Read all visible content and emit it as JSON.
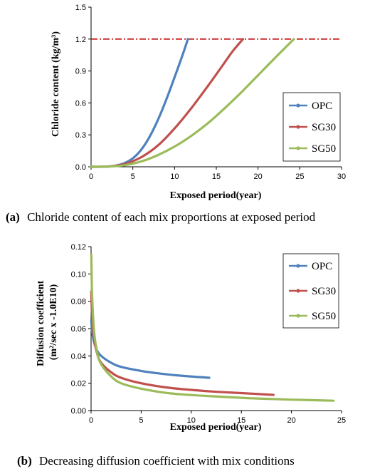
{
  "chart_data": [
    {
      "type": "line",
      "caption_label": "(a)",
      "caption_text": "Chloride content of each mix proportions at exposed period",
      "xlabel": "Exposed period(year)",
      "ylabel": "Chloride content (kg/m³)",
      "xlim": [
        0,
        30
      ],
      "ylim": [
        0,
        1.5
      ],
      "xticks": [
        "0",
        "5",
        "10",
        "15",
        "20",
        "25",
        "30"
      ],
      "yticks": [
        "0.0",
        "0.3",
        "0.6",
        "0.9",
        "1.2",
        "1.5"
      ],
      "grid": false,
      "legend_position": "bottom-right",
      "threshold": 1.2,
      "colors": {
        "threshold": "#c00000"
      },
      "series": [
        {
          "name": "OPC",
          "color": "#4f81bd",
          "x": [
            0,
            2,
            3,
            4,
            5,
            6,
            7,
            8,
            9,
            10,
            11,
            11.6
          ],
          "y": [
            0,
            0.003,
            0.012,
            0.035,
            0.08,
            0.16,
            0.28,
            0.44,
            0.63,
            0.84,
            1.06,
            1.2
          ]
        },
        {
          "name": "SG30",
          "color": "#c0504d",
          "x": [
            0,
            2,
            4,
            6,
            8,
            10,
            12,
            14,
            16,
            17,
            18.2
          ],
          "y": [
            0,
            0.002,
            0.025,
            0.09,
            0.2,
            0.36,
            0.55,
            0.76,
            0.98,
            1.09,
            1.2
          ]
        },
        {
          "name": "SG50",
          "color": "#9bbb59",
          "x": [
            0,
            2,
            4,
            6,
            8,
            10,
            12,
            14,
            16,
            18,
            20,
            22,
            24.3
          ],
          "y": [
            0,
            0.002,
            0.015,
            0.05,
            0.11,
            0.19,
            0.29,
            0.41,
            0.55,
            0.7,
            0.86,
            1.02,
            1.2
          ]
        }
      ]
    },
    {
      "type": "line",
      "caption_label": "(b)",
      "caption_text": "Decreasing diffusion coefficient with mix conditions",
      "xlabel": "Exposed period(year)",
      "ylabel": "Diffusion coefficient (m²/sec x -1.0E10)",
      "xlim": [
        0,
        25
      ],
      "ylim": [
        0,
        0.12
      ],
      "xticks": [
        "0",
        "5",
        "10",
        "15",
        "20",
        "25"
      ],
      "yticks": [
        "0.00",
        "0.02",
        "0.04",
        "0.06",
        "0.08",
        "0.10",
        "0.12"
      ],
      "grid": false,
      "legend_position": "top-right",
      "series": [
        {
          "name": "OPC",
          "color": "#4f81bd",
          "x": [
            0.02,
            0.1,
            0.3,
            0.6,
            1,
            2,
            3,
            5,
            7,
            9,
            11.8
          ],
          "y": [
            0.066,
            0.058,
            0.05,
            0.044,
            0.04,
            0.035,
            0.032,
            0.029,
            0.027,
            0.0255,
            0.024
          ]
        },
        {
          "name": "SG30",
          "color": "#c0504d",
          "x": [
            0.02,
            0.1,
            0.3,
            0.6,
            1,
            2,
            3,
            5,
            8,
            12,
            15,
            18.2
          ],
          "y": [
            0.087,
            0.07,
            0.053,
            0.042,
            0.035,
            0.028,
            0.024,
            0.02,
            0.0165,
            0.014,
            0.0128,
            0.0115
          ]
        },
        {
          "name": "SG50",
          "color": "#9bbb59",
          "x": [
            0.02,
            0.1,
            0.3,
            0.6,
            1,
            2,
            3,
            5,
            8,
            12,
            16,
            20,
            24.2
          ],
          "y": [
            0.114,
            0.085,
            0.058,
            0.043,
            0.034,
            0.025,
            0.02,
            0.016,
            0.0125,
            0.0105,
            0.009,
            0.008,
            0.0072
          ]
        }
      ]
    }
  ]
}
